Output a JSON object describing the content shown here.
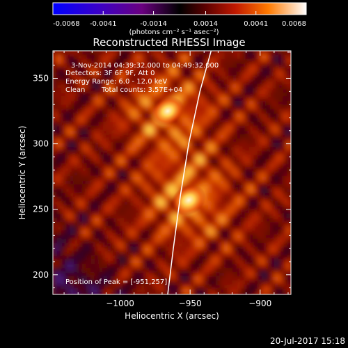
{
  "colorbar": {
    "ticks": [
      "-0.0068",
      "-0.0041",
      "-0.0014",
      "0.0014",
      "0.0041",
      "0.0068"
    ],
    "units_label": "(photons cm⁻² s⁻¹ asec⁻²)"
  },
  "chart_data": {
    "type": "heatmap",
    "title": "Reconstructed RHESSI Image",
    "xlabel": "Heliocentric X (arcsec)",
    "ylabel": "Heliocentric Y (arcsec)",
    "xlim": [
      -1048,
      -878
    ],
    "ylim": [
      185,
      371
    ],
    "xticks": [
      -1000,
      -950,
      -900
    ],
    "yticks": [
      200,
      250,
      300,
      350
    ],
    "xtick_labels": [
      "−1000",
      "−950",
      "−900"
    ],
    "ytick_labels": [
      "200",
      "250",
      "300",
      "350"
    ],
    "color_range": [
      -0.0068,
      0.0068
    ],
    "sources": [
      {
        "x": -966,
        "y": 325,
        "peak_fraction": 0.93
      },
      {
        "x": -951,
        "y": 257,
        "peak_fraction": 1.0
      }
    ],
    "limb_curve": [
      [
        -935,
        371
      ],
      [
        -943,
        340
      ],
      [
        -951,
        300
      ],
      [
        -957,
        260
      ],
      [
        -962,
        220
      ],
      [
        -966,
        185
      ]
    ],
    "annotations": {
      "time_range": "3-Nov-2014 04:39:32.000 to 04:49:32.000",
      "detectors": "Detectors: 3F 6F 9F, Att 0",
      "energy": "Energy Range: 6.0 - 12.0 keV",
      "clean": "Clean",
      "counts": "Total counts: 3.57E+04",
      "peak": "Position of Peak = [-951,257]"
    }
  },
  "footer": {
    "timestamp": "20-Jul-2017 15:18"
  }
}
